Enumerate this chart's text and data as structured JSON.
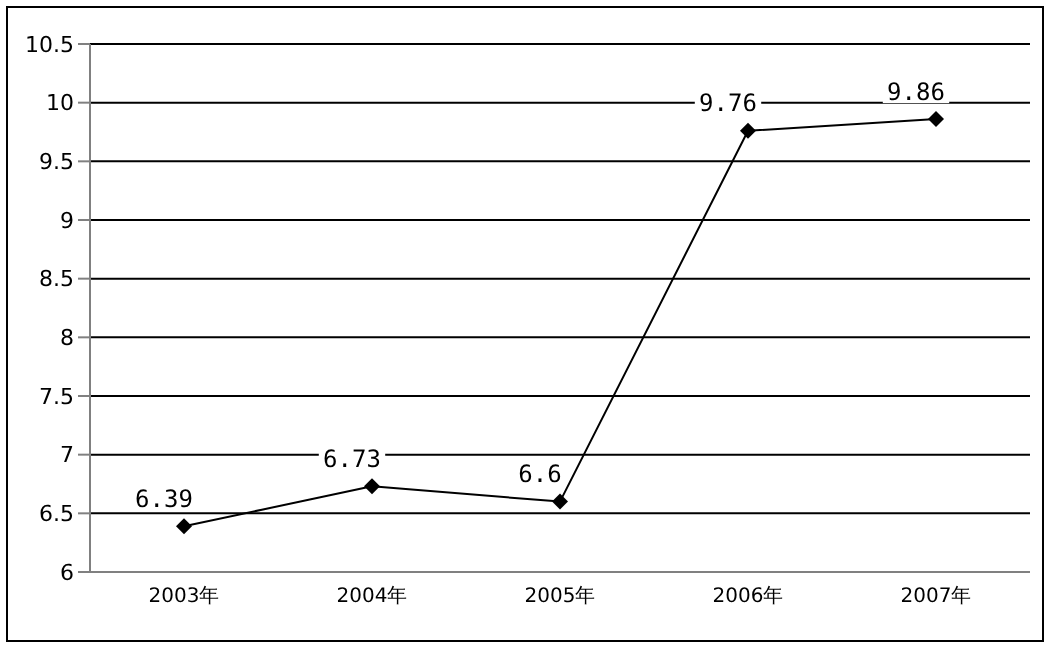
{
  "chart_data": {
    "type": "line",
    "categories": [
      "2003年",
      "2004年",
      "2005年",
      "2006年",
      "2007年"
    ],
    "series": [
      {
        "color": "#000000",
        "values": [
          6.39,
          6.73,
          6.6,
          9.76,
          9.86
        ]
      }
    ],
    "ylim": [
      6,
      10.5
    ],
    "yticks": [
      6,
      6.5,
      7,
      7.5,
      8,
      8.5,
      9,
      9.5,
      10,
      10.5
    ],
    "grid": "y",
    "marker": "diamond",
    "line_style": "solid",
    "data_labels": true
  }
}
